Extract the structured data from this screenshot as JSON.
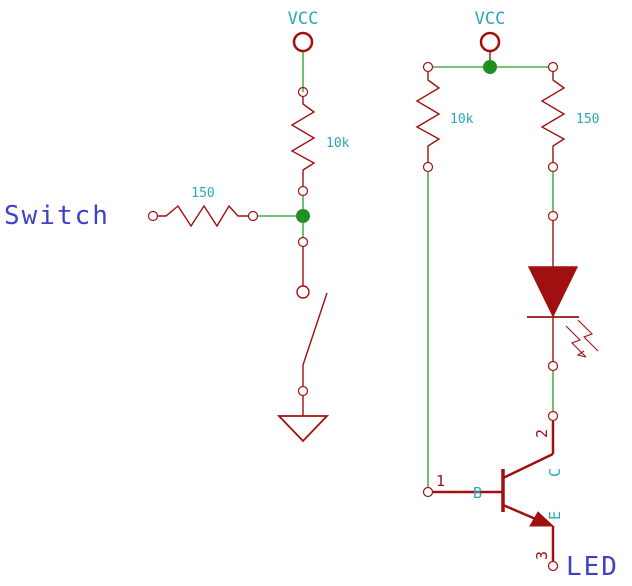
{
  "colors": {
    "wire": "#2a9a2a",
    "component": "#a01010",
    "label_cyan": "#2aa8b8",
    "label_blue": "#4040c8",
    "junction": "#1f8f1f"
  },
  "labels": {
    "vcc_left": "VCC",
    "vcc_right": "VCC",
    "r_pullup_value": "10k",
    "r_series_value": "150",
    "r_base_value": "10k",
    "r_led_value": "150",
    "net_switch": "Switch",
    "net_led": "LED",
    "pin1": "1",
    "pin2": "2",
    "pin3": "3",
    "pin_b": "B",
    "pin_c": "C",
    "pin_e": "E"
  }
}
